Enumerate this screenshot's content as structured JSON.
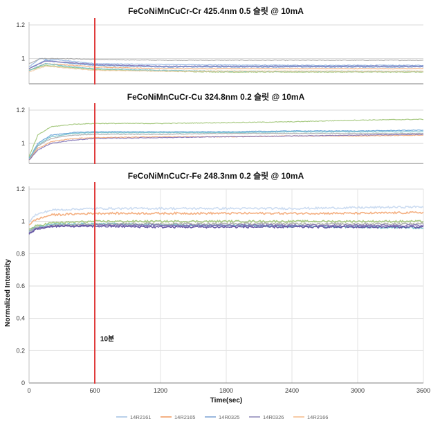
{
  "legend": {
    "placement": "bottom",
    "items": [
      {
        "name": "14R2161",
        "color": "#b9d0ea"
      },
      {
        "name": "14R2165",
        "color": "#f4b183"
      },
      {
        "name": "14R0325",
        "color": "#9ab8de"
      },
      {
        "name": "14R0326",
        "color": "#a9a5c9"
      },
      {
        "name": "14R2166",
        "color": "#f7cba6"
      }
    ]
  },
  "chart_data": [
    {
      "type": "line",
      "title": "FeCoNiMnCuCr-Cr 425.4nm 0.5 슬릿 @ 10mA",
      "xlim": [
        0,
        3600
      ],
      "ylim": [
        0.85,
        1.2
      ],
      "yticks": [
        "1.2",
        "1"
      ],
      "grid": true,
      "marker_line": {
        "x": 600,
        "color": "#e03c3c"
      },
      "series": [
        {
          "color": "#8fb4e0",
          "points": [
            [
              0,
              0.95
            ],
            [
              100,
              1.0
            ],
            [
              300,
              0.99
            ],
            [
              600,
              0.97
            ],
            [
              1200,
              0.965
            ],
            [
              1800,
              0.962
            ],
            [
              2400,
              0.96
            ],
            [
              3000,
              0.96
            ],
            [
              3600,
              0.96
            ]
          ]
        },
        {
          "color": "#a9a9a9",
          "points": [
            [
              0,
              0.97
            ],
            [
              100,
              1.0
            ],
            [
              300,
              1.0
            ],
            [
              600,
              0.995
            ],
            [
              1200,
              0.99
            ],
            [
              1800,
              0.99
            ],
            [
              2400,
              0.99
            ],
            [
              3000,
              0.99
            ],
            [
              3600,
              0.99
            ]
          ]
        },
        {
          "color": "#f3a774",
          "points": [
            [
              0,
              0.93
            ],
            [
              150,
              0.97
            ],
            [
              400,
              0.96
            ],
            [
              600,
              0.95
            ],
            [
              1200,
              0.94
            ],
            [
              1800,
              0.94
            ],
            [
              2400,
              0.94
            ],
            [
              3000,
              0.94
            ],
            [
              3600,
              0.94
            ]
          ]
        },
        {
          "color": "#9fc476",
          "points": [
            [
              0,
              0.93
            ],
            [
              150,
              0.96
            ],
            [
              400,
              0.945
            ],
            [
              600,
              0.935
            ],
            [
              1200,
              0.925
            ],
            [
              1800,
              0.92
            ],
            [
              2400,
              0.92
            ],
            [
              3000,
              0.92
            ],
            [
              3600,
              0.92
            ]
          ]
        },
        {
          "color": "#6e9ad0",
          "points": [
            [
              0,
              0.94
            ],
            [
              150,
              0.99
            ],
            [
              400,
              0.97
            ],
            [
              600,
              0.96
            ],
            [
              1200,
              0.95
            ],
            [
              1800,
              0.95
            ],
            [
              2400,
              0.95
            ],
            [
              3000,
              0.95
            ],
            [
              3600,
              0.95
            ]
          ]
        },
        {
          "color": "#7d6fb5",
          "points": [
            [
              0,
              0.94
            ],
            [
              150,
              0.985
            ],
            [
              400,
              0.975
            ],
            [
              600,
              0.965
            ],
            [
              1200,
              0.955
            ],
            [
              1800,
              0.955
            ],
            [
              2400,
              0.955
            ],
            [
              3000,
              0.955
            ],
            [
              3600,
              0.955
            ]
          ]
        },
        {
          "color": "#6fc0c9",
          "points": [
            [
              0,
              0.93
            ],
            [
              150,
              0.97
            ],
            [
              400,
              0.95
            ],
            [
              600,
              0.94
            ],
            [
              1200,
              0.93
            ],
            [
              1800,
              0.925
            ],
            [
              2400,
              0.925
            ],
            [
              3000,
              0.925
            ],
            [
              3600,
              0.925
            ]
          ]
        },
        {
          "color": "#f4cba6",
          "points": [
            [
              0,
              0.92
            ],
            [
              150,
              0.955
            ],
            [
              400,
              0.94
            ],
            [
              600,
              0.93
            ],
            [
              1200,
              0.925
            ],
            [
              1800,
              0.925
            ],
            [
              2400,
              0.925
            ],
            [
              3000,
              0.925
            ],
            [
              3600,
              0.925
            ]
          ]
        }
      ]
    },
    {
      "type": "line",
      "title": "FeCoNiMnCuCr-Cu 324.8nm 0.2 슬릿 @ 10mA",
      "xlim": [
        0,
        3600
      ],
      "ylim": [
        0.88,
        1.2
      ],
      "yticks": [
        "1.2",
        "1"
      ],
      "grid": true,
      "marker_line": {
        "x": 600,
        "color": "#e03c3c"
      },
      "series": [
        {
          "color": "#9fc476",
          "points": [
            [
              0,
              0.92
            ],
            [
              80,
              1.05
            ],
            [
              200,
              1.1
            ],
            [
              400,
              1.115
            ],
            [
              600,
              1.12
            ],
            [
              1200,
              1.12
            ],
            [
              1800,
              1.125
            ],
            [
              2400,
              1.13
            ],
            [
              3000,
              1.14
            ],
            [
              3600,
              1.145
            ]
          ]
        },
        {
          "color": "#5f9fd6",
          "points": [
            [
              0,
              0.91
            ],
            [
              80,
              1.0
            ],
            [
              200,
              1.05
            ],
            [
              400,
              1.065
            ],
            [
              600,
              1.07
            ],
            [
              1200,
              1.07
            ],
            [
              1800,
              1.07
            ],
            [
              2400,
              1.075
            ],
            [
              3000,
              1.075
            ],
            [
              3600,
              1.08
            ]
          ]
        },
        {
          "color": "#6fc0c9",
          "points": [
            [
              0,
              0.91
            ],
            [
              80,
              0.99
            ],
            [
              200,
              1.04
            ],
            [
              400,
              1.06
            ],
            [
              600,
              1.065
            ],
            [
              1200,
              1.065
            ],
            [
              1800,
              1.065
            ],
            [
              2400,
              1.07
            ],
            [
              3000,
              1.07
            ],
            [
              3600,
              1.07
            ]
          ]
        },
        {
          "color": "#a9a9a9",
          "points": [
            [
              0,
              0.9
            ],
            [
              80,
              0.985
            ],
            [
              200,
              1.03
            ],
            [
              400,
              1.05
            ],
            [
              600,
              1.055
            ],
            [
              1200,
              1.055
            ],
            [
              1800,
              1.06
            ],
            [
              2400,
              1.06
            ],
            [
              3000,
              1.06
            ],
            [
              3600,
              1.06
            ]
          ]
        },
        {
          "color": "#f3a774",
          "points": [
            [
              0,
              0.9
            ],
            [
              80,
              0.97
            ],
            [
              200,
              1.01
            ],
            [
              400,
              1.03
            ],
            [
              600,
              1.035
            ],
            [
              1200,
              1.04
            ],
            [
              1800,
              1.04
            ],
            [
              2400,
              1.045
            ],
            [
              3000,
              1.045
            ],
            [
              3600,
              1.05
            ]
          ]
        },
        {
          "color": "#7d6fb5",
          "points": [
            [
              0,
              0.9
            ],
            [
              80,
              0.96
            ],
            [
              200,
              1.0
            ],
            [
              400,
              1.02
            ],
            [
              600,
              1.03
            ],
            [
              1200,
              1.035
            ],
            [
              1800,
              1.04
            ],
            [
              2400,
              1.045
            ],
            [
              3000,
              1.05
            ],
            [
              3600,
              1.055
            ]
          ]
        }
      ]
    },
    {
      "type": "line",
      "title": "FeCoNiMnCuCr-Fe 248.3nm 0.2 슬릿 @ 10mA",
      "xlabel": "Time(sec)",
      "ylabel": "Normalized Intensity",
      "xlim": [
        0,
        3600
      ],
      "ylim": [
        0,
        1.2
      ],
      "xticks": [
        "0",
        "600",
        "1200",
        "1800",
        "2400",
        "3000",
        "3600"
      ],
      "yticks": [
        "1.2",
        "1",
        "0.8",
        "0.6",
        "0.4",
        "0.2",
        "0"
      ],
      "grid": true,
      "marker_line": {
        "x": 600,
        "color": "#e03c3c"
      },
      "annotation": {
        "text": "10분",
        "x": 650,
        "y": 0.26
      },
      "series": [
        {
          "color": "#c6d8f0",
          "points": [
            [
              0,
              1.0
            ],
            [
              60,
              1.04
            ],
            [
              200,
              1.07
            ],
            [
              600,
              1.08
            ],
            [
              1200,
              1.08
            ],
            [
              1800,
              1.08
            ],
            [
              2400,
              1.08
            ],
            [
              3000,
              1.085
            ],
            [
              3600,
              1.09
            ]
          ]
        },
        {
          "color": "#f3a774",
          "points": [
            [
              0,
              0.98
            ],
            [
              60,
              1.01
            ],
            [
              200,
              1.04
            ],
            [
              600,
              1.05
            ],
            [
              1200,
              1.05
            ],
            [
              1800,
              1.05
            ],
            [
              2400,
              1.05
            ],
            [
              3000,
              1.05
            ],
            [
              3600,
              1.055
            ]
          ]
        },
        {
          "color": "#9fc476",
          "points": [
            [
              0,
              0.95
            ],
            [
              60,
              0.97
            ],
            [
              200,
              0.99
            ],
            [
              600,
              1.0
            ],
            [
              1200,
              1.0
            ],
            [
              1800,
              1.0
            ],
            [
              2400,
              1.0
            ],
            [
              3000,
              1.0
            ],
            [
              3600,
              1.0
            ]
          ]
        },
        {
          "color": "#6fc0c9",
          "points": [
            [
              0,
              0.94
            ],
            [
              60,
              0.96
            ],
            [
              200,
              0.98
            ],
            [
              600,
              0.985
            ],
            [
              1200,
              0.98
            ],
            [
              1800,
              0.975
            ],
            [
              2400,
              0.97
            ],
            [
              3000,
              0.965
            ],
            [
              3600,
              0.96
            ]
          ]
        },
        {
          "color": "#a9a9a9",
          "points": [
            [
              0,
              0.94
            ],
            [
              60,
              0.96
            ],
            [
              200,
              0.975
            ],
            [
              600,
              0.985
            ],
            [
              1200,
              0.985
            ],
            [
              1800,
              0.985
            ],
            [
              2400,
              0.985
            ],
            [
              3000,
              0.985
            ],
            [
              3600,
              0.985
            ]
          ]
        },
        {
          "color": "#7d6fb5",
          "points": [
            [
              0,
              0.93
            ],
            [
              60,
              0.955
            ],
            [
              200,
              0.97
            ],
            [
              600,
              0.975
            ],
            [
              1200,
              0.975
            ],
            [
              1800,
              0.975
            ],
            [
              2400,
              0.975
            ],
            [
              3000,
              0.975
            ],
            [
              3600,
              0.975
            ]
          ]
        },
        {
          "color": "#5f4fa0",
          "points": [
            [
              0,
              0.92
            ],
            [
              60,
              0.95
            ],
            [
              200,
              0.97
            ],
            [
              600,
              0.97
            ],
            [
              1200,
              0.965
            ],
            [
              1800,
              0.965
            ],
            [
              2400,
              0.965
            ],
            [
              3000,
              0.965
            ],
            [
              3600,
              0.965
            ]
          ]
        }
      ]
    }
  ]
}
